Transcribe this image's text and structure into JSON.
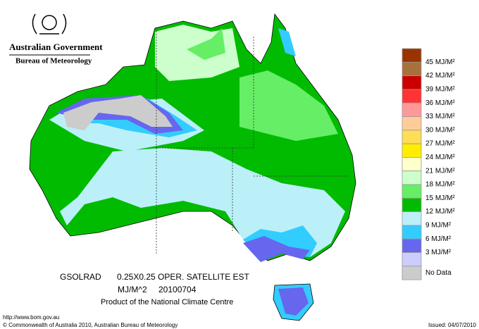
{
  "header": {
    "government": "Australian Government",
    "bureau": "Bureau of Meteorology"
  },
  "legend": {
    "labels": [
      "45 MJ/M²",
      "42 MJ/M²",
      "39 MJ/M²",
      "36 MJ/M²",
      "33 MJ/M²",
      "30 MJ/M²",
      "27 MJ/M²",
      "24 MJ/M²",
      "21 MJ/M²",
      "18 MJ/M²",
      "15 MJ/M²",
      "12 MJ/M²",
      "9 MJ/M²",
      "6 MJ/M²",
      "3 MJ/M²",
      "No Data"
    ],
    "colors": [
      "#993300",
      "#a8703c",
      "#cc0000",
      "#ff3333",
      "#ff9999",
      "#ffcc99",
      "#ffdd55",
      "#ffee00",
      "#ffffcc",
      "#ccffcc",
      "#66ee66",
      "#00bb00",
      "#bbf0f8",
      "#33ccff",
      "#6666ee",
      "#ccccff",
      "#cccccc"
    ]
  },
  "caption": {
    "product": "GSOLRAD",
    "grid": "0.25X0.25 OPER. SATELLITE EST",
    "units": "MJ/M^2",
    "date": "20100704",
    "centre": "Product of the National Climate Centre"
  },
  "footer": {
    "url": "http://www.bom.gov.au",
    "copyright": "© Commonwealth of Australia 2010, Australian Bureau of Meteorology",
    "issued": "Issued: 04/07/2010"
  }
}
